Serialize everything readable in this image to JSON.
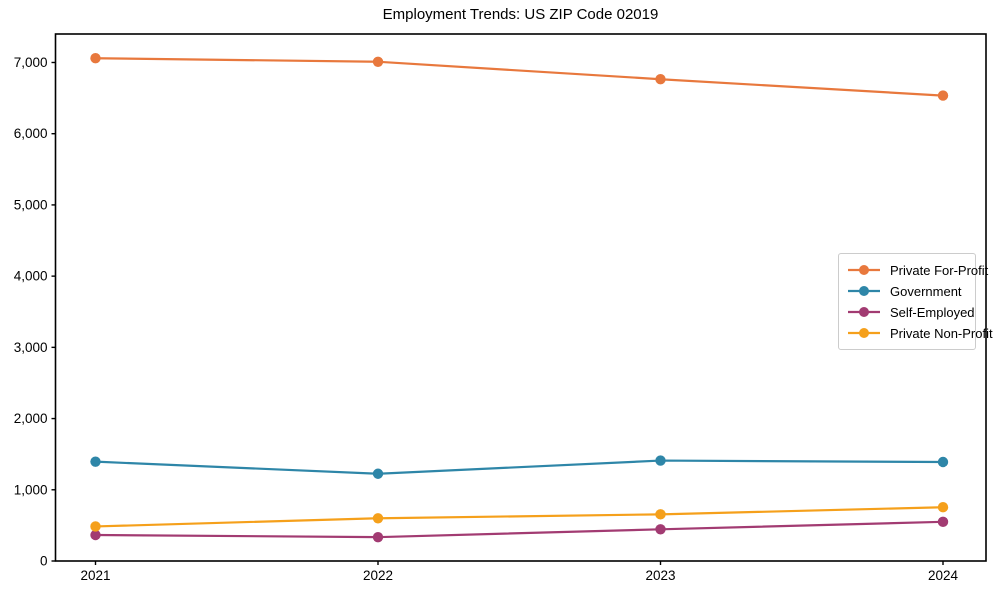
{
  "chart_data": {
    "type": "line",
    "title": "Employment Trends: US ZIP Code 02019",
    "categories": [
      "2021",
      "2022",
      "2023",
      "2024"
    ],
    "series": [
      {
        "name": "Private For-Profit",
        "color": "#E8783D",
        "values": [
          7060,
          7010,
          6765,
          6535
        ]
      },
      {
        "name": "Government",
        "color": "#2E86A8",
        "values": [
          1395,
          1225,
          1410,
          1390
        ]
      },
      {
        "name": "Self-Employed",
        "color": "#A23B72",
        "values": [
          365,
          335,
          445,
          550
        ]
      },
      {
        "name": "Private Non-Profit",
        "color": "#F5A01B",
        "values": [
          485,
          600,
          655,
          755
        ]
      }
    ],
    "xlabel": "",
    "ylabel": "",
    "ylim": [
      0,
      7400
    ],
    "yticks": [
      0,
      1000,
      2000,
      3000,
      4000,
      5000,
      6000,
      7000
    ],
    "grid": false,
    "legend_position": "right",
    "axis_color": "#000000"
  }
}
